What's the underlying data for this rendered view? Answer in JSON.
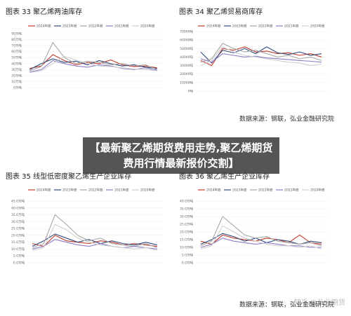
{
  "chart_data": [
    {
      "type": "line",
      "title": "图表 33 聚乙烯两油库存",
      "categories": [
        null,
        null,
        null,
        null,
        null,
        null,
        null,
        null,
        null,
        null,
        null,
        null
      ],
      "series": [
        {
          "name": "2024年度",
          "color": "#c0392b",
          "values": [
            32,
            36,
            55,
            45,
            38,
            42,
            40,
            46,
            38,
            35,
            36,
            33
          ]
        },
        {
          "name": "2023年度",
          "color": "#2f4b7c",
          "values": [
            30,
            40,
            48,
            42,
            44,
            38,
            45,
            40,
            36,
            38,
            34,
            32
          ]
        },
        {
          "name": "2022年度",
          "color": "#a8a8a8",
          "values": [
            28,
            35,
            75,
            50,
            40,
            44,
            42,
            38,
            40,
            36,
            38,
            30
          ]
        },
        {
          "name": "2021年度",
          "color": "#8e7cc3",
          "values": [
            26,
            30,
            45,
            40,
            36,
            34,
            38,
            36,
            32,
            30,
            33,
            29
          ]
        },
        {
          "name": "2020年度",
          "color": "#cfcfcf",
          "values": [
            25,
            28,
            40,
            52,
            46,
            40,
            36,
            35,
            33,
            31,
            30,
            28
          ]
        }
      ],
      "ylim": [
        0,
        90
      ],
      "yticks": [
        {
          "value": 0,
          "label": "0万吨"
        },
        {
          "value": 10,
          "label": "10万吨"
        },
        {
          "value": 20,
          "label": "20万吨"
        },
        {
          "value": 30,
          "label": "30万吨"
        },
        {
          "value": 40,
          "label": "40万吨"
        },
        {
          "value": 50,
          "label": "50万吨"
        },
        {
          "value": 60,
          "label": "60万吨"
        },
        {
          "value": 70,
          "label": "70万吨"
        },
        {
          "value": 80,
          "label": "80万吨"
        },
        {
          "value": 90,
          "label": "90万吨"
        }
      ],
      "grid": true
    },
    {
      "type": "line",
      "title": "图表 34 聚乙烯贸易商库存",
      "categories": [
        null,
        null,
        null,
        null,
        null,
        null,
        null,
        null,
        null,
        null,
        null,
        null
      ],
      "series": [
        {
          "name": "2024年度",
          "color": "#c0392b",
          "values": [
            36000,
            30000,
            50000,
            48000,
            52000,
            46000,
            47000,
            44000,
            45000,
            42000,
            44000,
            40000
          ]
        },
        {
          "name": "2023年度",
          "color": "#2f4b7c",
          "values": [
            46000,
            33000,
            48000,
            45000,
            50000,
            44000,
            52000,
            45000,
            43000,
            46000,
            42000,
            44000
          ]
        },
        {
          "name": "2022年度",
          "color": "#a8a8a8",
          "values": [
            34000,
            38000,
            56000,
            50000,
            46000,
            48000,
            44000,
            40000,
            42000,
            38000,
            40000,
            36000
          ]
        },
        {
          "name": "2021年度",
          "color": "#8e7cc3",
          "values": [
            38000,
            34000,
            44000,
            42000,
            40000,
            41000,
            39000,
            38000,
            37000,
            36000,
            35000,
            34000
          ]
        },
        {
          "name": "2020年度",
          "color": "#cfcfcf",
          "values": [
            30000,
            36000,
            52000,
            46000,
            42000,
            40000,
            38000,
            36000,
            34000,
            33000,
            30000,
            32000
          ]
        }
      ],
      "ylim": [
        0,
        70000
      ],
      "yticks": [
        {
          "value": 0,
          "label": "0吨"
        },
        {
          "value": 10000,
          "label": "10000吨"
        },
        {
          "value": 20000,
          "label": "20000吨"
        },
        {
          "value": 30000,
          "label": "30000吨"
        },
        {
          "value": 40000,
          "label": "40000吨"
        },
        {
          "value": 50000,
          "label": "50000吨"
        },
        {
          "value": 60000,
          "label": "60000吨"
        },
        {
          "value": 70000,
          "label": "70000吨"
        }
      ],
      "grid": true,
      "source": "数据来源：钢联，弘业金融研究院"
    },
    {
      "type": "line",
      "title": "图表 35 线型低密度聚乙烯生产企业库存",
      "categories": [
        null,
        null,
        null,
        null,
        null,
        null,
        null,
        null,
        null,
        null,
        null,
        null
      ],
      "series": [
        {
          "name": "2024年度",
          "color": "#c0392b",
          "values": [
            14,
            12,
            20,
            16,
            15,
            14,
            16,
            15,
            13,
            14,
            13,
            12
          ]
        },
        {
          "name": "2023年度",
          "color": "#2f4b7c",
          "values": [
            12,
            16,
            21,
            18,
            15,
            17,
            14,
            16,
            14,
            13,
            15,
            13
          ]
        },
        {
          "name": "2022年度",
          "color": "#a8a8a8",
          "values": [
            11,
            14,
            35,
            28,
            20,
            16,
            18,
            14,
            13,
            12,
            14,
            11
          ]
        },
        {
          "name": "2021年度",
          "color": "#8e7cc3",
          "values": [
            10,
            12,
            17,
            15,
            13,
            12,
            14,
            12,
            11,
            12,
            11,
            10
          ]
        },
        {
          "name": "2020年度",
          "color": "#cfcfcf",
          "values": [
            9,
            11,
            28,
            24,
            18,
            15,
            13,
            12,
            11,
            10,
            11,
            9
          ]
        }
      ],
      "ylim": [
        0,
        45
      ],
      "yticks": [
        {
          "value": 0,
          "label": "0.0万吨"
        },
        {
          "value": 5,
          "label": "5.0万吨"
        },
        {
          "value": 10,
          "label": "10.0万吨"
        },
        {
          "value": 15,
          "label": "15.0万吨"
        },
        {
          "value": 20,
          "label": "20.0万吨"
        },
        {
          "value": 25,
          "label": "25.0万吨"
        },
        {
          "value": 30,
          "label": "30.0万吨"
        },
        {
          "value": 35,
          "label": "35.0万吨"
        },
        {
          "value": 40,
          "label": "40.0万吨"
        },
        {
          "value": 45,
          "label": "45.0万吨"
        }
      ],
      "grid": true
    },
    {
      "type": "line",
      "title": "图表 36 聚乙烯生产企业库存",
      "categories": [
        null,
        null,
        null,
        null,
        null,
        null,
        null,
        null,
        null,
        null,
        null,
        null
      ],
      "series": [
        {
          "name": "2024年度",
          "color": "#c0392b",
          "values": [
            14,
            12,
            18,
            16,
            15,
            14,
            16,
            15,
            13,
            18,
            13,
            12
          ]
        },
        {
          "name": "2023年度",
          "color": "#2f4b7c",
          "values": [
            12,
            15,
            19,
            17,
            14,
            16,
            13,
            15,
            14,
            12,
            14,
            13
          ]
        },
        {
          "name": "2022年度",
          "color": "#a8a8a8",
          "values": [
            11,
            14,
            30,
            24,
            18,
            16,
            17,
            14,
            13,
            12,
            13,
            11
          ]
        },
        {
          "name": "2021年度",
          "color": "#8e7cc3",
          "values": [
            10,
            12,
            16,
            14,
            13,
            12,
            13,
            12,
            11,
            11,
            10,
            10
          ]
        },
        {
          "name": "2020年度",
          "color": "#cfcfcf",
          "values": [
            9,
            11,
            24,
            20,
            16,
            14,
            12,
            11,
            11,
            10,
            11,
            9
          ]
        }
      ],
      "ylim": [
        0,
        40
      ],
      "yticks": [
        {
          "value": 0,
          "label": "0.0万吨"
        },
        {
          "value": 5,
          "label": "5.0万吨"
        },
        {
          "value": 10,
          "label": "10.0万吨"
        },
        {
          "value": 15,
          "label": "15.0万吨"
        },
        {
          "value": 20,
          "label": "20.0万吨"
        },
        {
          "value": 25,
          "label": "25.0万吨"
        },
        {
          "value": 30,
          "label": "30.0万吨"
        },
        {
          "value": 35,
          "label": "35.0万吨"
        },
        {
          "value": 40,
          "label": "40.0万吨"
        }
      ],
      "grid": true,
      "source": "数据来源：钢联，弘业金融研究院"
    }
  ],
  "banner": "【最新聚乙烯期货费用走势,聚乙烯期货费用行情最新报价交割】",
  "watermark": "知乎 @弘业期货"
}
